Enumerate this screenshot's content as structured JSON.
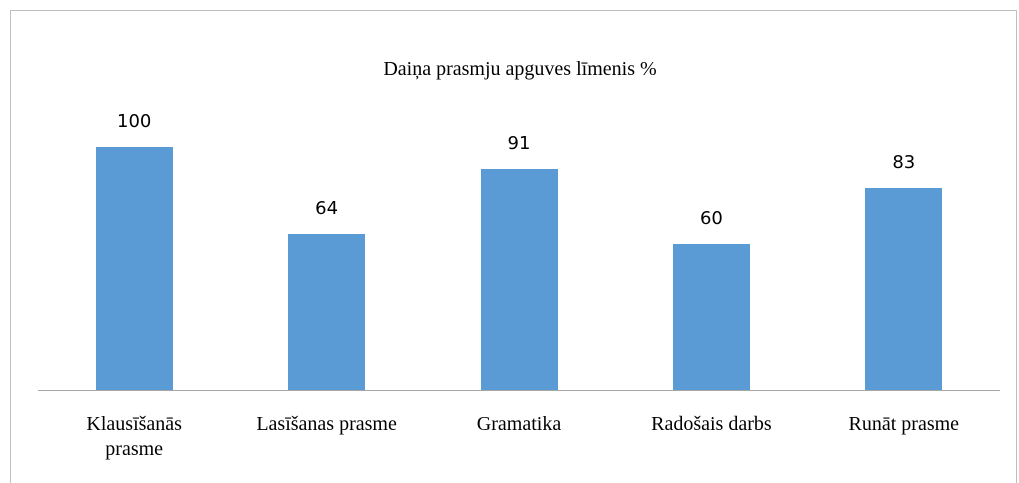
{
  "chart_data": {
    "type": "bar",
    "title": "Daiņa prasmju apguves līmenis %",
    "categories": [
      "Klausīšanās prasme",
      "Lasīšanas prasme",
      "Gramatika",
      "Radošais darbs",
      "Runāt prasme"
    ],
    "values": [
      100,
      64,
      91,
      60,
      83
    ],
    "color": "#5b9bd5"
  }
}
